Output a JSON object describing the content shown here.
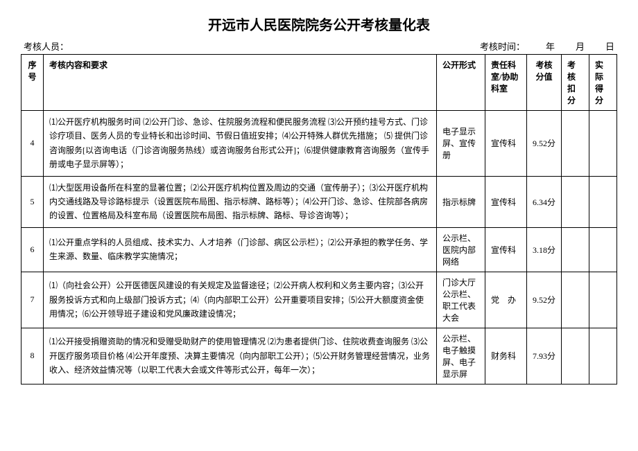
{
  "title": "开远市人民医院院务公开考核量化表",
  "header": {
    "assessor_label": "考核人员：",
    "time_label": "考核时间：",
    "year": "年",
    "month": "月",
    "day": "日"
  },
  "columns": {
    "seq": "序号",
    "content": "考核内容和要求",
    "form": "公开形式",
    "dept": "责任科室/协助科室",
    "score": "考核分值",
    "deduct": "考核扣分",
    "actual": "实际得分"
  },
  "rows": [
    {
      "seq": "4",
      "content": "⑴公开医疗机构服务时间 ⑵公开门诊、急诊、住院服务流程和便民服务流程 ⑶公开预约挂号方式、门诊诊疗项目、医务人员的专业特长和出诊时间、节假日值班安排；⑷公开特殊人群优先措施； ⑸ 提供门诊咨询服务[以咨询电话（门诊咨询服务热线）或咨询服务台形式公开]；⑹提供健康教育咨询服务（宣传手册或电子显示屏等）；",
      "form": "电子显示屏、宣传册",
      "dept": "宣传科",
      "score": "9.52分"
    },
    {
      "seq": "5",
      "content": "⑴大型医用设备所在科室的显著位置；⑵公开医疗机构位置及周边的交通（宣传册子）；⑶公开医疗机构内交通线路及导诊路标提示（设置医院布局图、指示标牌、路标等）；⑷公开门诊、急诊、住院部各病房的设置、位置格局及科室布局（设置医院布局图、指示标牌、路标、导诊咨询等）；",
      "form": "指示标牌",
      "dept": "宣传科",
      "score": "6.34分"
    },
    {
      "seq": "6",
      "content": "⑴公开重点学科的人员组成、技术实力、人才培养（门诊部、病区公示栏）；⑵公开承担的教学任务、学生来源、数量、临床教学实施情况；",
      "form": "公示栏、医院内部网络",
      "dept": "宣传科",
      "score": "3.18分"
    },
    {
      "seq": "7",
      "content": "⑴（向社会公开）公开医德医风建设的有关规定及监督途径；⑵公开病人权利和义务主要内容；⑶公开服务投诉方式和向上级部门投诉方式；⑷（向内部职工公开）公开重要项目安排；⑸公开大额度资金使用情况；⑹公开领导班子建设和党风廉政建设情况；",
      "form": "门诊大厅公示栏、职工代表大会",
      "dept": "党　办",
      "score": "9.52分"
    },
    {
      "seq": "8",
      "content": "⑴公开接受捐赠资助的情况和受赠受助财产的使用管理情况 ⑵为患者提供门诊、住院收费查询服务 ⑶公开医疗服务项目价格 ⑷公开年度预、决算主要情况（向内部职工公开）；⑸公开财务管理经营情况，业务收入、经济效益情况等（以职工代表大会或文件等形式公开，每年一次）；",
      "form": "公示栏、电子触摸屏、电子显示屏",
      "dept": "财务科",
      "score": "7.93分"
    }
  ]
}
